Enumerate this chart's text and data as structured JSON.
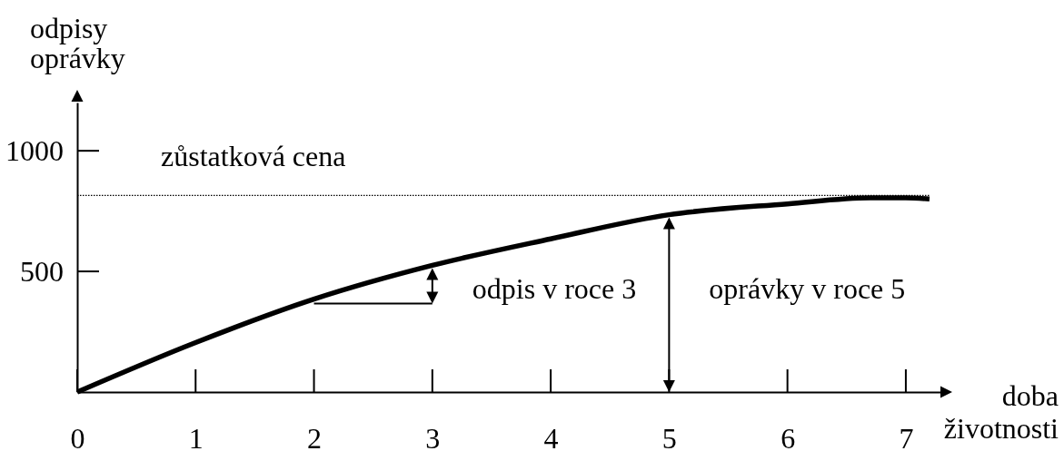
{
  "chart_data": {
    "type": "line",
    "xlabel": "doba\nživotnosti",
    "ylabel": "odpisy\noprávky",
    "x": [
      0,
      1,
      2,
      3,
      4,
      5,
      6,
      6.7,
      7,
      7.2
    ],
    "series": [
      {
        "color": "#000000",
        "values": [
          0,
          205,
          385,
          525,
          635,
          735,
          780,
          805,
          805,
          800
        ]
      }
    ],
    "xlim": [
      0,
      7.3
    ],
    "ylim": [
      0,
      1200
    ],
    "xticks": [
      0,
      1,
      2,
      3,
      4,
      5,
      6,
      7
    ],
    "yticks": [
      500,
      1000
    ],
    "ref_lines": [
      {
        "axis": "y",
        "value": 815,
        "label": "zůstatková cena",
        "line_style": "dotted",
        "color": "#000000"
      }
    ],
    "annotations": [
      {
        "text": "odpis v roce 3",
        "x": 3,
        "y": 525
      },
      {
        "text": "oprávky v roce 5",
        "x": 5,
        "y": 735
      }
    ]
  }
}
